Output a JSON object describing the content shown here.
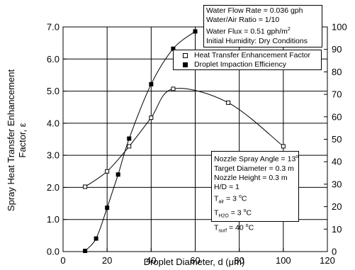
{
  "chart_data": {
    "type": "scatter",
    "xlabel": "Droplet Diameter, d (μm)",
    "ylabel_line1": "Spray Heat Transfer Enhancement",
    "ylabel_line2": "Factor, ε",
    "xlim": [
      0,
      120
    ],
    "ylim": [
      0,
      7
    ],
    "y2lim": [
      0,
      100
    ],
    "x_ticks": [
      "0",
      "20",
      "40",
      "60",
      "80",
      "100",
      "120"
    ],
    "y_ticks": [
      "0.0",
      "1.0",
      "2.0",
      "3.0",
      "4.0",
      "5.0",
      "6.0",
      "7.0"
    ],
    "y2_ticks": [
      "0",
      "10",
      "20",
      "30",
      "40",
      "50",
      "60",
      "70",
      "80",
      "90",
      "100"
    ],
    "grid": "vertical and horizontal at major ticks",
    "legend_position": "top-right",
    "series": [
      {
        "name": "Heat Transfer Enhancement Factor",
        "axis": "left",
        "marker": "open-square",
        "x": [
          10,
          20,
          30,
          40,
          50,
          75,
          100
        ],
        "y": [
          2.02,
          2.5,
          3.28,
          4.17,
          5.07,
          4.64,
          3.28
        ]
      },
      {
        "name": "Droplet Impaction Efficiency",
        "axis": "right",
        "marker": "filled-square",
        "x": [
          10,
          15,
          20,
          25,
          30,
          40,
          50,
          60
        ],
        "y": [
          0.3,
          5.8,
          19.5,
          34.3,
          50.3,
          74.5,
          90.3,
          98
        ]
      }
    ],
    "annotations": {
      "top_box": [
        "Water Flow Rate = 0.036 gph",
        "Water/Air Ratio = 1/10",
        "Water Flux = 0.51 gph/m²",
        "Initial Humidity: Dry Conditions"
      ],
      "bottom_box": [
        "Nozzle Spray Angle = 13°",
        "Target Diameter = 0.3 m",
        "Nozzle Height = 0.3 m",
        "H/D = 1",
        "T_air = 3 °C",
        "T_H2O = 3 °C",
        "T_surf = 40 °C"
      ]
    }
  },
  "text": {
    "top1": "Water Flow Rate = 0.036 gph",
    "top2": "Water/Air Ratio = 1/10",
    "top3a": "Water Flux = 0.51 gph/m",
    "top3sup": "2",
    "top4": "Initial Humidity: Dry Conditions",
    "leg1": "Heat Transfer Enhancement Factor",
    "leg2": "Droplet Impaction Efficiency",
    "b1a": "Nozzle Spray Angle = 13",
    "b1sup": "o",
    "b2": "Target Diameter = 0.3 m",
    "b3": "Nozzle Height = 0.3 m",
    "b4": "H/D = 1",
    "b5T": "T",
    "b5sub": "air",
    "b5a": " = 3 ",
    "b5sup": "o",
    "b5b": "C",
    "b6T": "T",
    "b6sub": "H2O",
    "b6a": " = 3 ",
    "b6sup": "o",
    "b6b": "C",
    "b7T": "T",
    "b7sub": "surf",
    "b7a": " = 40 ",
    "b7sup": "o",
    "b7b": "C"
  }
}
